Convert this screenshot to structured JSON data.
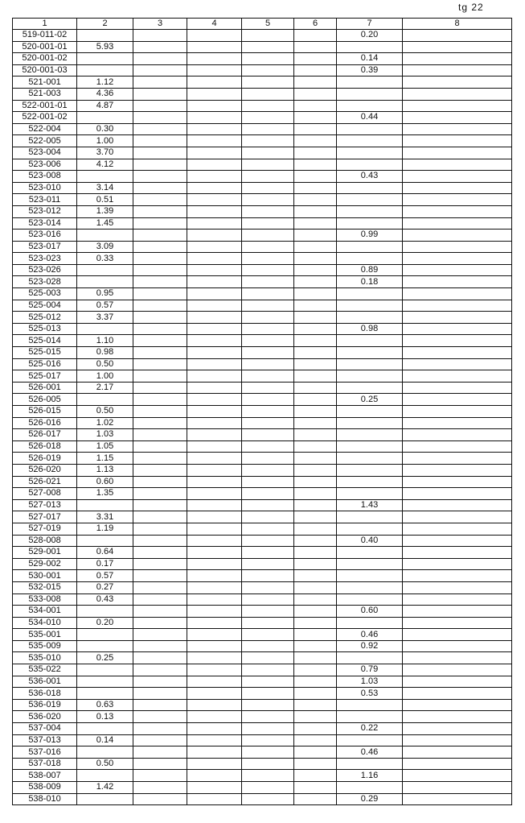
{
  "corner_mark": "tg 22",
  "columns": [
    "1",
    "2",
    "3",
    "4",
    "5",
    "6",
    "7",
    "8"
  ],
  "rows": [
    [
      "519-011-02",
      "",
      "0.20"
    ],
    [
      "520-001-01",
      "5.93",
      ""
    ],
    [
      "520-001-02",
      "",
      "0.14"
    ],
    [
      "520-001-03",
      "",
      "0.39"
    ],
    [
      "521-001",
      "1.12",
      ""
    ],
    [
      "521-003",
      "4.36",
      ""
    ],
    [
      "522-001-01",
      "4.87",
      ""
    ],
    [
      "522-001-02",
      "",
      "0.44"
    ],
    [
      "522-004",
      "0.30",
      ""
    ],
    [
      "522-005",
      "1.00",
      ""
    ],
    [
      "523-004",
      "3.70",
      ""
    ],
    [
      "523-006",
      "4.12",
      ""
    ],
    [
      "523-008",
      "",
      "0.43"
    ],
    [
      "523-010",
      "3.14",
      ""
    ],
    [
      "523-011",
      "0.51",
      ""
    ],
    [
      "523-012",
      "1.39",
      ""
    ],
    [
      "523-014",
      "1.45",
      ""
    ],
    [
      "523-016",
      "",
      "0.99"
    ],
    [
      "523-017",
      "3.09",
      ""
    ],
    [
      "523-023",
      "0.33",
      ""
    ],
    [
      "523-026",
      "",
      "0.89"
    ],
    [
      "523-028",
      "",
      "0.18"
    ],
    [
      "525-003",
      "0.95",
      ""
    ],
    [
      "525-004",
      "0.57",
      ""
    ],
    [
      "525-012",
      "3.37",
      ""
    ],
    [
      "525-013",
      "",
      "0.98"
    ],
    [
      "525-014",
      "1.10",
      ""
    ],
    [
      "525-015",
      "0.98",
      ""
    ],
    [
      "525-016",
      "0.50",
      ""
    ],
    [
      "525-017",
      "1.00",
      ""
    ],
    [
      "526-001",
      "2.17",
      ""
    ],
    [
      "526-005",
      "",
      "0.25"
    ],
    [
      "526-015",
      "0.50",
      ""
    ],
    [
      "526-016",
      "1.02",
      ""
    ],
    [
      "526-017",
      "1.03",
      ""
    ],
    [
      "526-018",
      "1.05",
      ""
    ],
    [
      "526-019",
      "1.15",
      ""
    ],
    [
      "526-020",
      "1.13",
      ""
    ],
    [
      "526-021",
      "0.60",
      ""
    ],
    [
      "527-008",
      "1.35",
      ""
    ],
    [
      "527-013",
      "",
      "1.43"
    ],
    [
      "527-017",
      "3.31",
      ""
    ],
    [
      "527-019",
      "1.19",
      ""
    ],
    [
      "528-008",
      "",
      "0.40"
    ],
    [
      "529-001",
      "0.64",
      ""
    ],
    [
      "529-002",
      "0.17",
      ""
    ],
    [
      "530-001",
      "0.57",
      ""
    ],
    [
      "532-015",
      "0.27",
      ""
    ],
    [
      "533-008",
      "0.43",
      ""
    ],
    [
      "534-001",
      "",
      "0.60"
    ],
    [
      "534-010",
      "0.20",
      ""
    ],
    [
      "535-001",
      "",
      "0.46"
    ],
    [
      "535-009",
      "",
      "0.92"
    ],
    [
      "535-010",
      "0.25",
      ""
    ],
    [
      "535-022",
      "",
      "0.79"
    ],
    [
      "536-001",
      "",
      "1.03"
    ],
    [
      "536-018",
      "",
      "0.53"
    ],
    [
      "536-019",
      "0.63",
      ""
    ],
    [
      "536-020",
      "0.13",
      ""
    ],
    [
      "537-004",
      "",
      "0.22"
    ],
    [
      "537-013",
      "0.14",
      ""
    ],
    [
      "537-016",
      "",
      "0.46"
    ],
    [
      "537-018",
      "0.50",
      ""
    ],
    [
      "538-007",
      "",
      "1.16"
    ],
    [
      "538-009",
      "1.42",
      ""
    ],
    [
      "538-010",
      "",
      "0.29"
    ]
  ]
}
